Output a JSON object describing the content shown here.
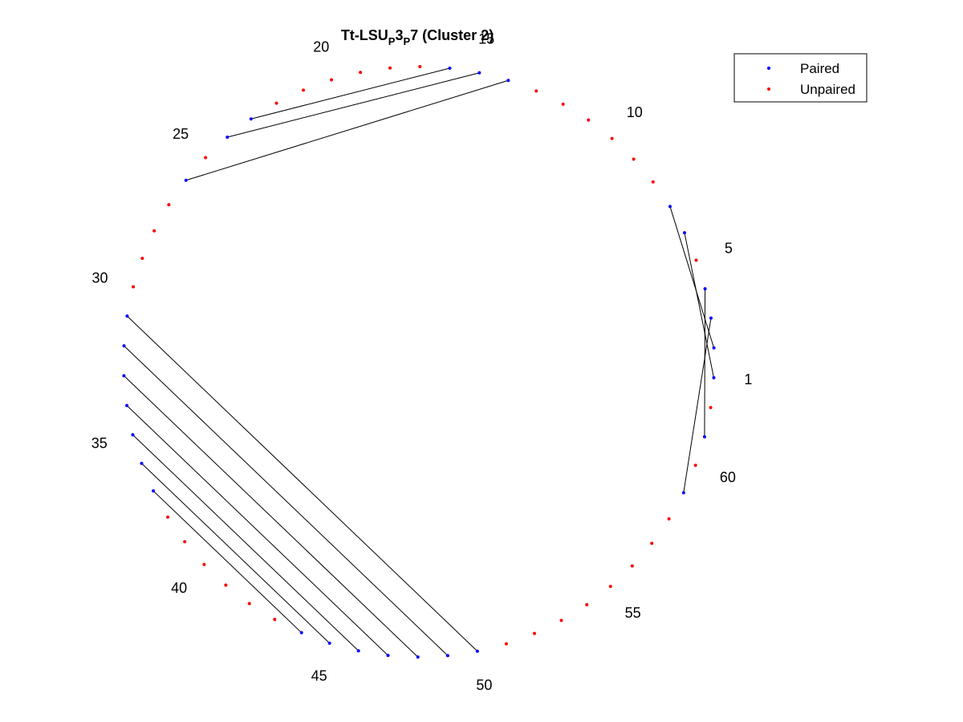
{
  "title": {
    "parts": [
      {
        "text": "Tt-LSU",
        "sub": false
      },
      {
        "text": "P",
        "sub": true
      },
      {
        "text": "3",
        "sub": false
      },
      {
        "text": "P",
        "sub": true
      },
      {
        "text": "7 (Cluster 2)",
        "sub": false
      }
    ]
  },
  "legend": {
    "placement": "top-right",
    "entries": [
      {
        "label": "Paired",
        "color": "#0000ff"
      },
      {
        "label": "Unpaired",
        "color": "#ff0000"
      }
    ]
  },
  "chart_data": {
    "type": "circular-arc-diagram",
    "n": 62,
    "numbering": "counter-clockwise",
    "index_labels": [
      1,
      5,
      10,
      15,
      20,
      25,
      30,
      35,
      40,
      45,
      50,
      55,
      60
    ],
    "pairs": [
      [
        1,
        6
      ],
      [
        2,
        7
      ],
      [
        3,
        59
      ],
      [
        4,
        61
      ],
      [
        14,
        26
      ],
      [
        15,
        24
      ],
      [
        16,
        23
      ],
      [
        31,
        50
      ],
      [
        32,
        49
      ],
      [
        33,
        48
      ],
      [
        34,
        47
      ],
      [
        35,
        46
      ],
      [
        36,
        45
      ],
      [
        37,
        44
      ]
    ],
    "colors": {
      "paired": "#0000ff",
      "unpaired": "#ff0000",
      "link": "#000000"
    }
  }
}
